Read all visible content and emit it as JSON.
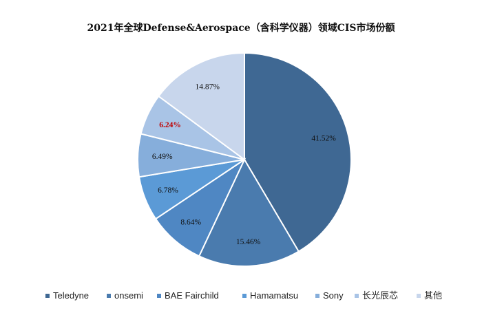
{
  "chart_data": {
    "type": "pie",
    "title": "2021年全球Defense&Aerospace（含科学仪器）领域CIS市场份额",
    "legend_position": "bottom",
    "start_angle_deg": 0,
    "direction": "clockwise",
    "slices": [
      {
        "name": "Teledyne",
        "value": 41.52,
        "label": "41.52%",
        "color": "#3f6893",
        "label_color": "#111111"
      },
      {
        "name": "onsemi",
        "value": 15.46,
        "label": "15.46%",
        "color": "#4a7bae",
        "label_color": "#111111"
      },
      {
        "name": "BAE Fairchild",
        "value": 8.64,
        "label": "8.64%",
        "color": "#4f87c3",
        "label_color": "#111111"
      },
      {
        "name": "Hamamatsu",
        "value": 6.78,
        "label": "6.78%",
        "color": "#5b9ad6",
        "label_color": "#111111"
      },
      {
        "name": "Sony",
        "value": 6.49,
        "label": "6.49%",
        "color": "#86aedb",
        "label_color": "#111111"
      },
      {
        "name": "长光辰芯",
        "value": 6.24,
        "label": "6.24%",
        "color": "#a9c4e6",
        "label_color": "#c00000"
      },
      {
        "name": "其他",
        "value": 14.87,
        "label": "14.87%",
        "color": "#c8d6ec",
        "label_color": "#111111"
      }
    ]
  }
}
